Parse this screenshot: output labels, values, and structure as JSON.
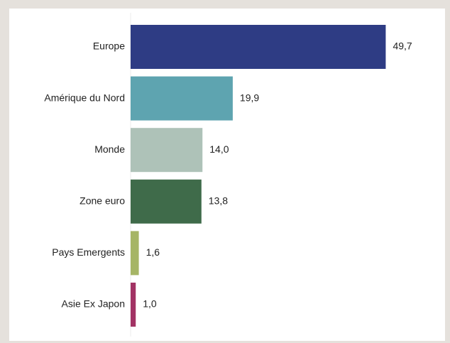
{
  "chart_data": {
    "type": "bar",
    "orientation": "horizontal",
    "title": "",
    "xlabel": "",
    "ylabel": "",
    "categories": [
      "Europe",
      "Amérique du Nord",
      "Monde",
      "Zone euro",
      "Pays Emergents",
      "Asie Ex Japon"
    ],
    "values": [
      49.7,
      19.9,
      14.0,
      13.8,
      1.6,
      1.0
    ],
    "value_labels": [
      "49,7",
      "19,9",
      "14,0",
      "13,8",
      "1,6",
      "1,0"
    ],
    "colors": [
      "#2e3c84",
      "#5ea4b0",
      "#aec2b8",
      "#3f6b4a",
      "#a6b565",
      "#a23364"
    ],
    "xlim": [
      0,
      56
    ],
    "grid": false,
    "legend": "none"
  }
}
